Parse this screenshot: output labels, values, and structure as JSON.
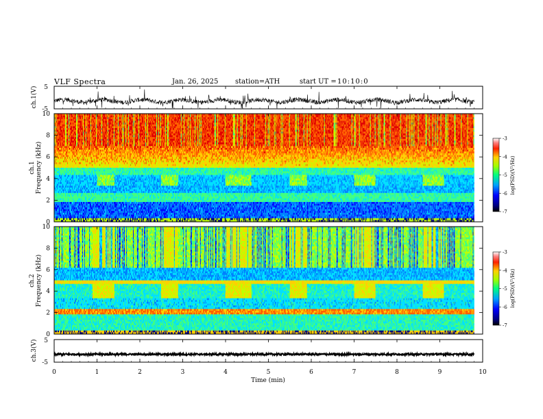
{
  "header": {
    "title": "VLF Spectra",
    "date": "Jan. 26, 2025",
    "station": "station=ATH",
    "start_label": "start UT =",
    "start_time": "10:10:0"
  },
  "chart_data": [
    {
      "type": "line",
      "panel": "ch1-waveform",
      "ylabel": "ch.1(V)",
      "ylim": [
        -5,
        5
      ],
      "yticks": [
        "5",
        "-5"
      ],
      "xlim": [
        0,
        10
      ],
      "x_end": 9.8,
      "baseline": -1.5
    },
    {
      "type": "heatmap",
      "panel": "ch1-spectrogram",
      "ylabel": "ch.1 Frequency (kHz)",
      "ylabel_top": "ch.1",
      "ylabel_main": "Frequency (kHz)",
      "ylim": [
        0,
        10
      ],
      "yticks": [
        "0",
        "2",
        "4",
        "6",
        "8",
        "10"
      ],
      "xlim": [
        0,
        10
      ],
      "x_end": 9.8,
      "colorbar": {
        "label": "log(PSD)(V²/Hz)",
        "range": [
          -7,
          -3
        ],
        "ticks": [
          "-3",
          "-4",
          "-5",
          "-6",
          "-7"
        ]
      },
      "bursts_min": [
        [
          1.0,
          1.4
        ],
        [
          2.5,
          2.9
        ],
        [
          4.0,
          4.6
        ],
        [
          5.5,
          5.9
        ],
        [
          7.0,
          7.5
        ],
        [
          8.6,
          9.1
        ]
      ]
    },
    {
      "type": "heatmap",
      "panel": "ch2-spectrogram",
      "ylabel": "ch.2 Frequency (kHz)",
      "ylabel_top": "ch.2",
      "ylabel_main": "Frequency (kHz)",
      "ylim": [
        0,
        10
      ],
      "yticks": [
        "0",
        "2",
        "4",
        "6",
        "8",
        "10"
      ],
      "xlim": [
        0,
        10
      ],
      "x_end": 9.8,
      "colorbar": {
        "label": "log(PSD)(V²/Hz)",
        "range": [
          -7,
          -3
        ],
        "ticks": [
          "-3",
          "-4",
          "-5",
          "-6",
          "-7"
        ]
      },
      "bursts_min": [
        [
          0.9,
          1.4
        ],
        [
          2.5,
          2.9
        ],
        [
          4.0,
          4.6
        ],
        [
          5.5,
          5.9
        ],
        [
          7.0,
          7.5
        ],
        [
          8.6,
          9.1
        ]
      ]
    },
    {
      "type": "line",
      "panel": "ch3-waveform",
      "ylabel": "ch.3(V)",
      "ylim": [
        -5,
        5
      ],
      "yticks": [
        "5",
        "-5"
      ],
      "xlim": [
        0,
        10
      ],
      "x_end": 9.8,
      "baseline": -1.5,
      "xlabel": "Time (min)",
      "xticks": [
        "0",
        "1",
        "2",
        "3",
        "4",
        "5",
        "6",
        "7",
        "8",
        "9",
        "10"
      ]
    }
  ],
  "colors": {
    "jet": [
      "#000080",
      "#0000ff",
      "#0080ff",
      "#00e0ff",
      "#40ff80",
      "#c0ff00",
      "#ffd000",
      "#ff6000",
      "#e00000"
    ]
  }
}
